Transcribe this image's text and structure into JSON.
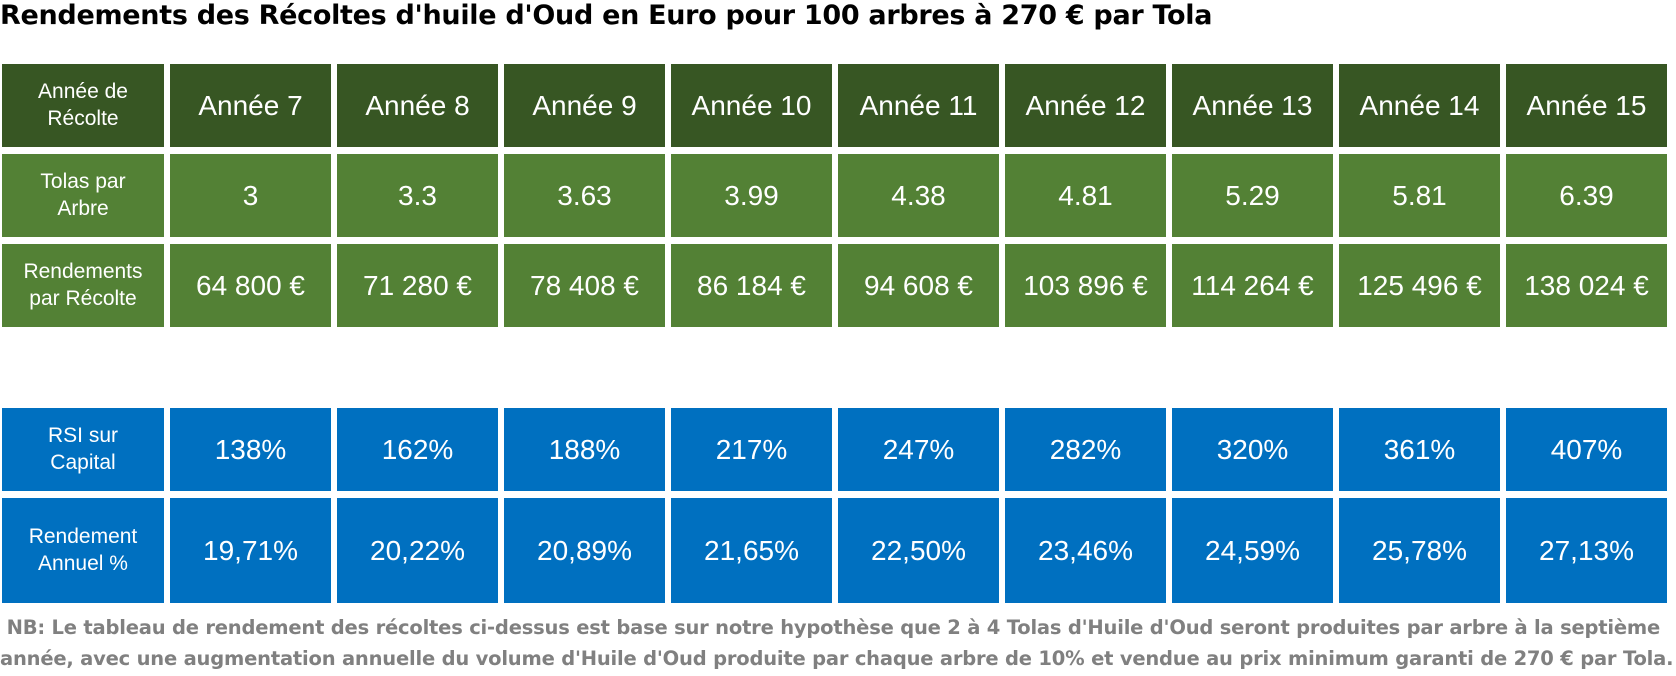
{
  "title": "Rendements des Récoltes d'huile d'Oud en Euro pour 100 arbres à 270 € par Tola",
  "table_top": {
    "header": {
      "label": "Année de\nRécolte",
      "cells": [
        "Année 7",
        "Année 8",
        "Année 9",
        "Année 10",
        "Année 11",
        "Année 12",
        "Année 13",
        "Année 14",
        "Année 15"
      ]
    },
    "tolas": {
      "label": "Tolas par\nArbre",
      "cells": [
        "3",
        "3.3",
        "3.63",
        "3.99",
        "4.38",
        "4.81",
        "5.29",
        "5.81",
        "6.39"
      ]
    },
    "rendements": {
      "label": "Rendements\npar Récolte",
      "cells": [
        "64 800 €",
        "71 280 €",
        "78 408 €",
        "86 184 €",
        "94 608 €",
        "103 896 €",
        "114 264 €",
        "125 496 €",
        "138 024 €"
      ]
    }
  },
  "table_bottom": {
    "rsi": {
      "label": "RSI sur\nCapital",
      "cells": [
        "138%",
        "162%",
        "188%",
        "217%",
        "247%",
        "282%",
        "320%",
        "361%",
        "407%"
      ]
    },
    "rendement_annuel": {
      "label": "Rendement\nAnnuel %",
      "cells": [
        "19,71%",
        "20,22%",
        "20,89%",
        "21,65%",
        "22,50%",
        "23,46%",
        "24,59%",
        "25,78%",
        "27,13%"
      ]
    }
  },
  "note_line1": " NB: Le tableau de rendement des récoltes ci-dessus est base sur notre hypothèse que 2 à 4 Tolas d'Huile d'Oud seront produites par arbre à la septième",
  "note_line2": "année, avec une augmentation annuelle du volume d'Huile d'Oud produite par chaque arbre de 10% et vendue au prix minimum garanti de 270 € par Tola.",
  "colors": {
    "header_green": "#375623",
    "row_green": "#538135",
    "row_blue": "#0070c0",
    "note_gray": "#808080"
  }
}
